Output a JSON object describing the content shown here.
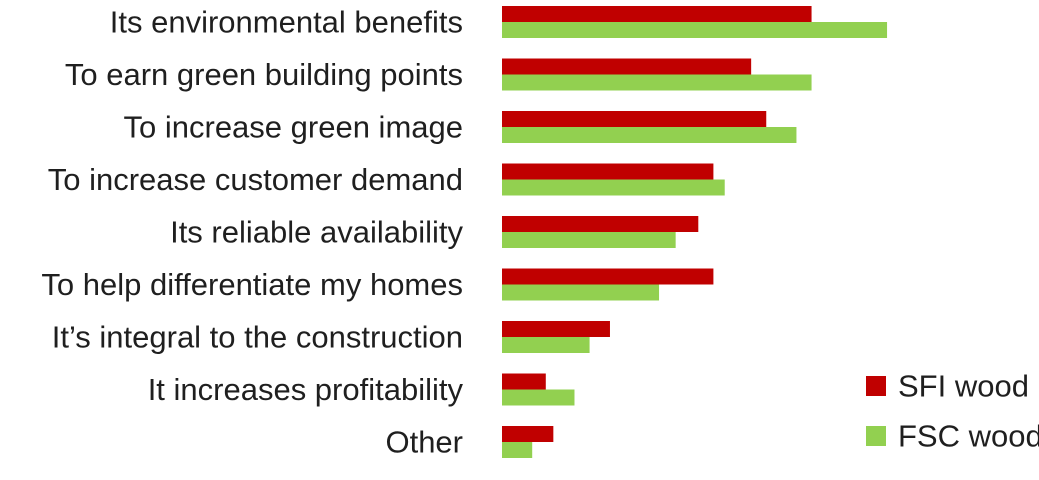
{
  "chart_data": {
    "type": "bar",
    "orientation": "horizontal",
    "categories": [
      "Its environmental benefits",
      "To earn green building points",
      "To increase green image",
      "To increase customer demand",
      "Its reliable availability",
      "To help differentiate my homes",
      "It’s integral to the construction",
      "It increases profitability",
      "Other"
    ],
    "series": [
      {
        "name": "SFI wood",
        "color": "#c00000",
        "values": [
          41,
          33,
          35,
          28,
          26,
          28,
          14.3,
          5.8,
          6.8
        ]
      },
      {
        "name": "FSC wood",
        "color": "#92d050",
        "values": [
          51,
          41,
          39,
          29.5,
          23,
          20.8,
          11.6,
          9.6,
          4
        ]
      }
    ],
    "xlim": [
      0,
      60
    ],
    "grid": false,
    "axes_visible": false,
    "legend": {
      "position": "bottom-right"
    }
  }
}
